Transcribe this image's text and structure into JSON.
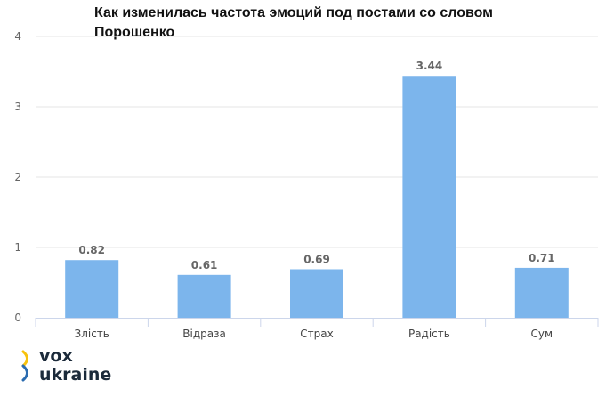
{
  "chart_data": {
    "type": "bar",
    "title": "Как изменилась частота эмоций под постами со словом Порошенко",
    "categories": [
      "Злість",
      "Відраза",
      "Страх",
      "Радість",
      "Сум"
    ],
    "values": [
      0.82,
      0.61,
      0.69,
      3.44,
      0.71
    ],
    "data_labels": [
      "0.82",
      "0.61",
      "0.69",
      "3.44",
      "0.71"
    ],
    "yticks": [
      "0",
      "1",
      "2",
      "3",
      "4"
    ],
    "ylim": [
      0,
      4
    ],
    "xlabel": "",
    "ylabel": "",
    "grid": true,
    "bar_color": "#7cb5ec"
  },
  "logo": {
    "line1": "vox",
    "line2": "ukraine",
    "mark_colors": [
      "#f7c20d",
      "#2b6cb0"
    ]
  }
}
